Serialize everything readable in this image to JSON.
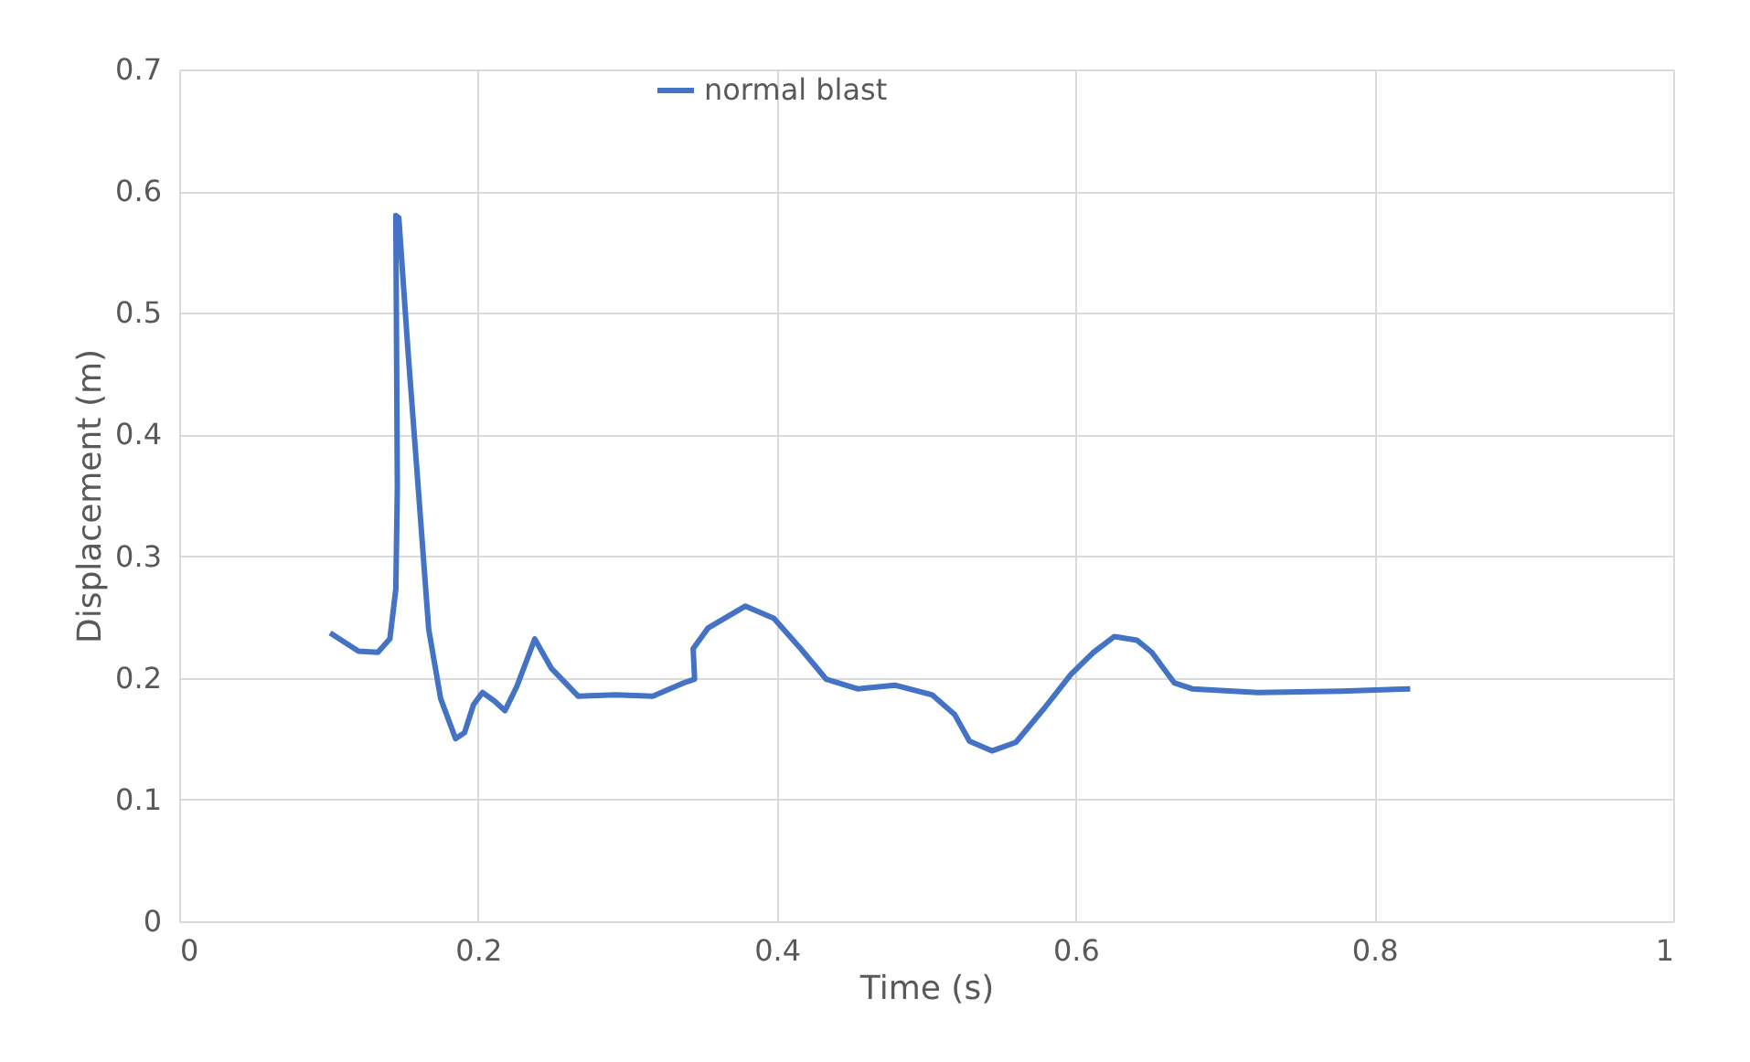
{
  "chart_data": {
    "type": "line",
    "xlabel": "Time (s)",
    "ylabel": "Displacement (m)",
    "xlim": [
      0,
      1
    ],
    "xticks": [
      0,
      0.2,
      0.4,
      0.6,
      0.8,
      1
    ],
    "ylim": [
      0,
      0.7
    ],
    "yticks": [
      0,
      0.1,
      0.2,
      0.3,
      0.4,
      0.5,
      0.6,
      0.7
    ],
    "grid": true,
    "legend": "top",
    "marker": "none",
    "line_style": "solid",
    "series": [
      {
        "name": "normal blast",
        "color": "#4472c4",
        "x": [
          0.101,
          0.12,
          0.133,
          0.141,
          0.145,
          0.146,
          0.145,
          0.147,
          0.153,
          0.16,
          0.167,
          0.175,
          0.185,
          0.191,
          0.197,
          0.203,
          0.211,
          0.218,
          0.226,
          0.238,
          0.249,
          0.267,
          0.292,
          0.317,
          0.338,
          0.345,
          0.344,
          0.354,
          0.379,
          0.398,
          0.416,
          0.433,
          0.454,
          0.479,
          0.504,
          0.519,
          0.529,
          0.544,
          0.56,
          0.579,
          0.597,
          0.612,
          0.626,
          0.641,
          0.651,
          0.666,
          0.678,
          0.722,
          0.778,
          0.824
        ],
        "values": [
          0.237,
          0.222,
          0.221,
          0.232,
          0.273,
          0.356,
          0.58,
          0.578,
          0.471,
          0.356,
          0.24,
          0.183,
          0.15,
          0.155,
          0.178,
          0.188,
          0.181,
          0.173,
          0.193,
          0.232,
          0.208,
          0.185,
          0.186,
          0.185,
          0.196,
          0.199,
          0.224,
          0.241,
          0.259,
          0.249,
          0.224,
          0.199,
          0.191,
          0.194,
          0.186,
          0.17,
          0.148,
          0.14,
          0.147,
          0.175,
          0.203,
          0.221,
          0.234,
          0.231,
          0.221,
          0.196,
          0.191,
          0.188,
          0.189,
          0.191
        ]
      }
    ]
  }
}
